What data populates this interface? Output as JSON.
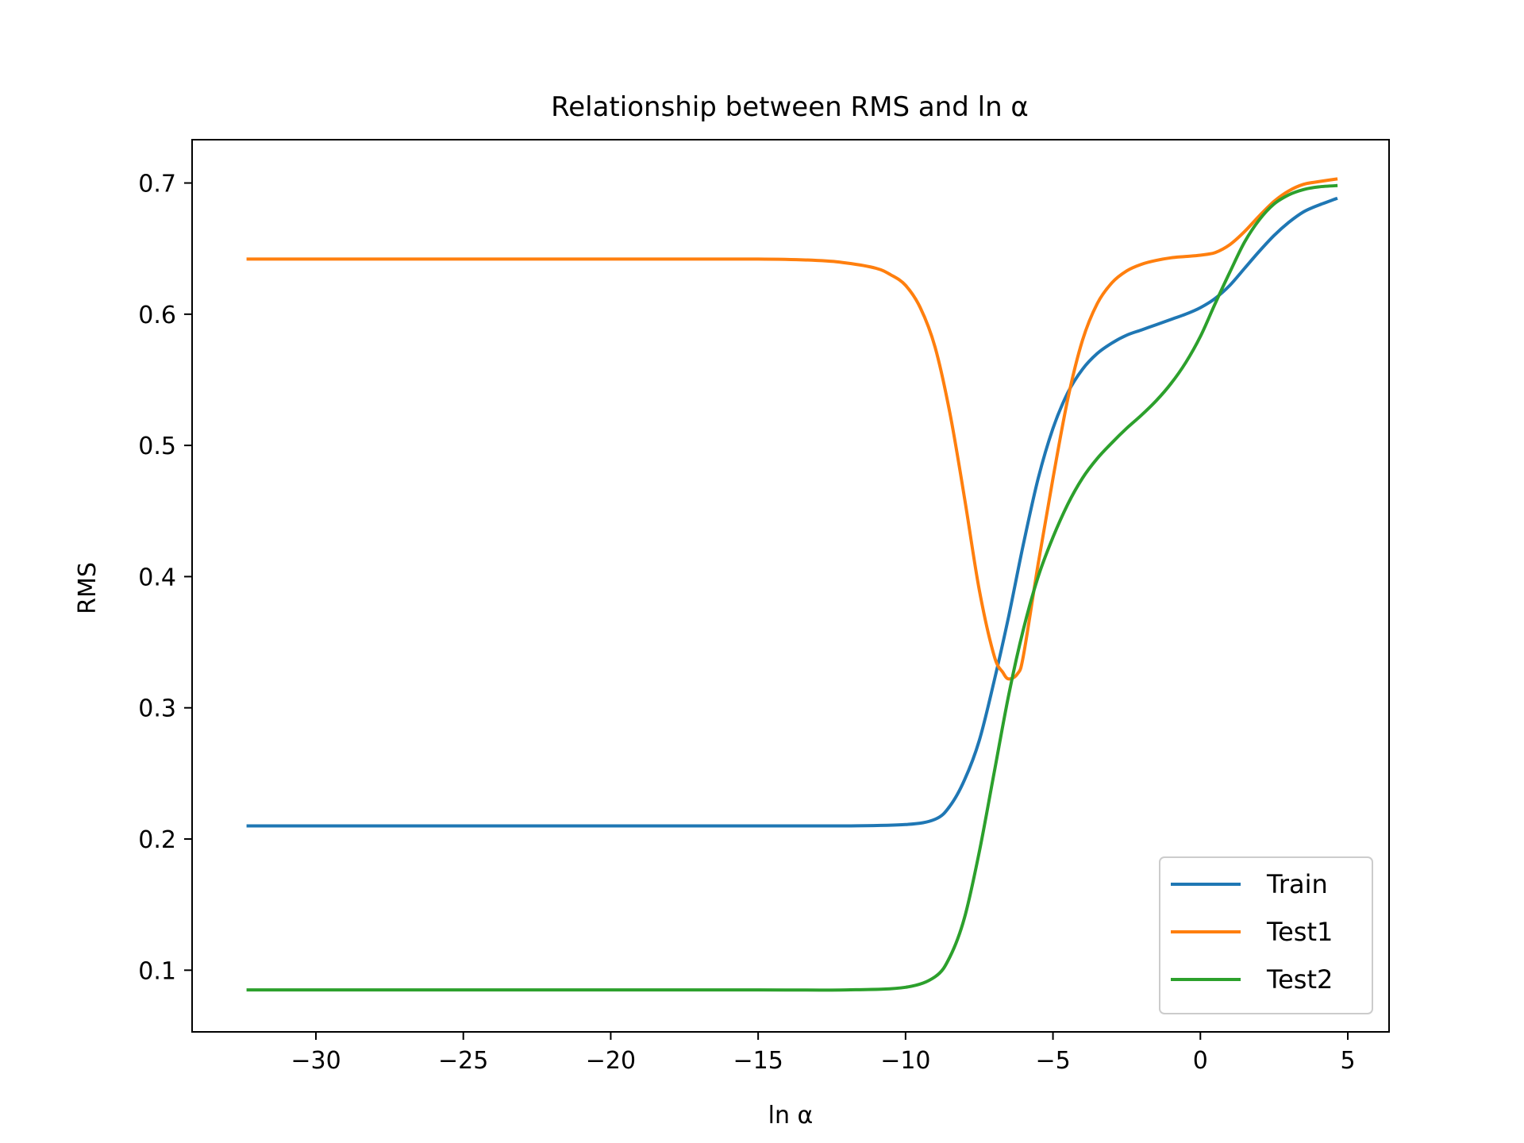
{
  "chart_data": {
    "type": "line",
    "title": "Relationship between RMS and ln α",
    "xlabel": "ln α",
    "ylabel": "RMS",
    "xlim": [
      -34.2,
      6.4
    ],
    "ylim": [
      0.053,
      0.733
    ],
    "xticks": [
      -30,
      -25,
      -20,
      -15,
      -10,
      -5,
      0,
      5
    ],
    "xtick_labels": [
      "−30",
      "−25",
      "−20",
      "−15",
      "−10",
      "−5",
      "0",
      "5"
    ],
    "yticks": [
      0.1,
      0.2,
      0.3,
      0.4,
      0.5,
      0.6,
      0.7
    ],
    "ytick_labels": [
      "0.1",
      "0.2",
      "0.3",
      "0.4",
      "0.5",
      "0.6",
      "0.7"
    ],
    "grid": false,
    "legend_position": "lower-right",
    "series": [
      {
        "name": "Train",
        "color": "#1f77b4",
        "x": [
          -32.3,
          -25,
          -20,
          -15,
          -12,
          -10,
          -9,
          -8.5,
          -8,
          -7.5,
          -7,
          -6.5,
          -6,
          -5.5,
          -5,
          -4.5,
          -4,
          -3.5,
          -3,
          -2.5,
          -2,
          -1.5,
          -1,
          -0.5,
          0,
          0.5,
          1,
          1.5,
          2,
          2.5,
          3,
          3.5,
          4,
          4.6
        ],
        "y": [
          0.21,
          0.21,
          0.21,
          0.21,
          0.21,
          0.211,
          0.215,
          0.225,
          0.245,
          0.275,
          0.32,
          0.37,
          0.425,
          0.475,
          0.513,
          0.54,
          0.558,
          0.57,
          0.578,
          0.584,
          0.588,
          0.592,
          0.596,
          0.6,
          0.605,
          0.612,
          0.622,
          0.635,
          0.648,
          0.66,
          0.67,
          0.678,
          0.683,
          0.688
        ]
      },
      {
        "name": "Test1",
        "color": "#ff7f0e",
        "x": [
          -32.3,
          -25,
          -20,
          -15,
          -13,
          -12,
          -11,
          -10.5,
          -10,
          -9.5,
          -9,
          -8.5,
          -8,
          -7.5,
          -7,
          -6.7,
          -6.5,
          -6.2,
          -6,
          -5.5,
          -5,
          -4.5,
          -4,
          -3.5,
          -3,
          -2.5,
          -2,
          -1.5,
          -1,
          -0.5,
          0,
          0.5,
          1,
          1.5,
          2,
          2.5,
          3,
          3.5,
          4,
          4.6
        ],
        "y": [
          0.642,
          0.642,
          0.642,
          0.642,
          0.641,
          0.639,
          0.635,
          0.63,
          0.622,
          0.605,
          0.575,
          0.525,
          0.46,
          0.39,
          0.34,
          0.327,
          0.322,
          0.326,
          0.34,
          0.41,
          0.475,
          0.535,
          0.58,
          0.608,
          0.624,
          0.633,
          0.638,
          0.641,
          0.643,
          0.644,
          0.645,
          0.647,
          0.653,
          0.663,
          0.675,
          0.686,
          0.694,
          0.699,
          0.701,
          0.703
        ]
      },
      {
        "name": "Test2",
        "color": "#2ca02c",
        "x": [
          -32.3,
          -25,
          -20,
          -15,
          -12,
          -10,
          -9,
          -8.5,
          -8,
          -7.5,
          -7,
          -6.5,
          -6,
          -5.5,
          -5,
          -4.5,
          -4,
          -3.5,
          -3,
          -2.5,
          -2,
          -1.5,
          -1,
          -0.5,
          0,
          0.5,
          1,
          1.5,
          2,
          2.5,
          3,
          3.5,
          4,
          4.6
        ],
        "y": [
          0.085,
          0.085,
          0.085,
          0.085,
          0.085,
          0.087,
          0.095,
          0.11,
          0.14,
          0.19,
          0.25,
          0.31,
          0.36,
          0.4,
          0.43,
          0.455,
          0.475,
          0.49,
          0.502,
          0.513,
          0.523,
          0.534,
          0.547,
          0.563,
          0.583,
          0.608,
          0.632,
          0.655,
          0.672,
          0.684,
          0.691,
          0.695,
          0.697,
          0.698
        ]
      }
    ]
  }
}
